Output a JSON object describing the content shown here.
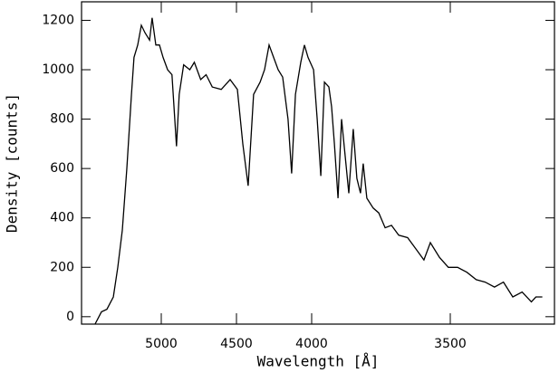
{
  "chart_data": {
    "type": "line",
    "xlabel": "Wavelength [Å]",
    "ylabel": "Density [counts]",
    "x": [
      5435,
      5393,
      5357,
      5315,
      5286,
      5256,
      5226,
      5196,
      5179,
      5155,
      5131,
      5107,
      5077,
      5060,
      5036,
      5012,
      4988,
      4958,
      4929,
      4899,
      4881,
      4851,
      4810,
      4780,
      4738,
      4702,
      4661,
      4601,
      4542,
      4494,
      4458,
      4422,
      4386,
      4343,
      4313,
      4283,
      4253,
      4223,
      4193,
      4157,
      4133,
      4108,
      4072,
      4048,
      4024,
      3993,
      3980,
      3967,
      3954,
      3938,
      3928,
      3918,
      3905,
      3892,
      3879,
      3866,
      3850,
      3837,
      3824,
      3814,
      3801,
      3778,
      3758,
      3735,
      3712,
      3686,
      3654,
      3621,
      3595,
      3572,
      3539,
      3507,
      3474,
      3441,
      3408,
      3376,
      3343,
      3311,
      3278,
      3245,
      3212,
      3196,
      3173
    ],
    "series": [
      {
        "name": "Density",
        "color": "#000000",
        "values": [
          -30,
          20,
          30,
          80,
          200,
          350,
          600,
          900,
          1050,
          1100,
          1180,
          1150,
          1120,
          1210,
          1100,
          1100,
          1050,
          1000,
          980,
          690,
          900,
          1020,
          1000,
          1030,
          960,
          980,
          930,
          920,
          960,
          920,
          700,
          530,
          900,
          950,
          1000,
          1100,
          1050,
          1000,
          970,
          800,
          580,
          900,
          1030,
          1100,
          1050,
          1000,
          800,
          570,
          950,
          930,
          850,
          700,
          480,
          800,
          650,
          500,
          760,
          560,
          500,
          620,
          480,
          440,
          420,
          360,
          370,
          330,
          320,
          270,
          230,
          300,
          240,
          200,
          200,
          180,
          150,
          140,
          120,
          140,
          80,
          100,
          60,
          80,
          80
        ]
      }
    ],
    "xlim": [
      5524,
      3130
    ],
    "xticks": [
      5000,
      4500,
      4000,
      3500
    ],
    "ylim": [
      -30,
      1275
    ],
    "yticks": [
      0,
      200,
      400,
      600,
      800,
      1000,
      1200
    ]
  }
}
